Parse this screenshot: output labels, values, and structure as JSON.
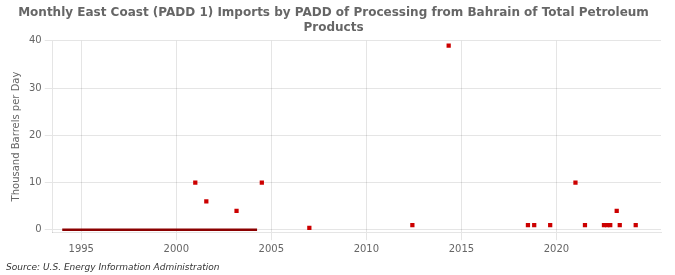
{
  "chart_data": {
    "type": "scatter",
    "title": "Monthly East Coast (PADD 1) Imports by PADD of Processing from Bahrain of Total Petroleum\nProducts",
    "y_label": "Thousand Barrels per Day",
    "annotation": "Source: U.S. Energy Information Administration",
    "xlim": [
      1993.5,
      2025.5
    ],
    "ylim": [
      -0.5,
      40
    ],
    "xticks": [
      1995,
      2000,
      2005,
      2010,
      2015,
      2020
    ],
    "yticks": [
      0,
      10,
      20,
      30,
      40
    ],
    "grid": true,
    "series": [
      {
        "type": "line",
        "color": "#8b0000",
        "line_style": "solid",
        "x": [
          1994.0,
          2004.25
        ],
        "values": [
          0.0,
          0.0
        ]
      },
      {
        "type": "scatter",
        "color": "#cc0000",
        "marker": "square",
        "x": [
          2001.0,
          2001.58,
          2003.17,
          2004.5,
          2007.0,
          2012.42,
          2014.33,
          2018.5,
          2018.83,
          2019.67,
          2021.0,
          2021.5,
          2022.5,
          2022.67,
          2022.83,
          2023.17,
          2023.33,
          2024.17
        ],
        "values": [
          10.0,
          6.0,
          4.0,
          10.0,
          0.4,
          1.0,
          39.0,
          1.0,
          1.0,
          1.0,
          10.0,
          1.0,
          1.0,
          1.0,
          1.0,
          4.0,
          1.0,
          1.0
        ]
      }
    ]
  }
}
